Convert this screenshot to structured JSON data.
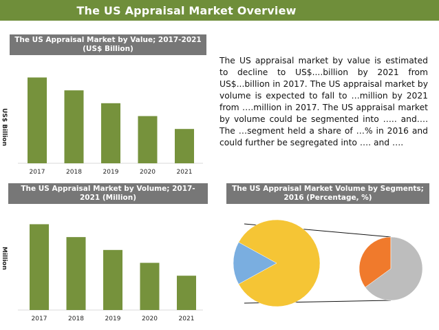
{
  "header": {
    "title": "The US Appraisal Market Overview"
  },
  "description": "The US appraisal market by value is estimated to decline to US$....billion by 2021 from US$...billion in 2017. The US appraisal market by volume is expected to fall to …million by 2021 from ….million in 2017. The US appraisal market by volume could be segmented into ….. and…. The …segment held a share of …% in 2016 and could further be segregated into …. and ….",
  "colors": {
    "title_bar": "#6f8e3a",
    "bar_fill": "#76923c",
    "chart_title_bg": "#777777",
    "pie_main": "#f5c535",
    "pie_slice": "#7aaee0",
    "pie_detail_orange": "#f07a2c",
    "pie_detail_gray": "#bdbdbd"
  },
  "chart_data": [
    {
      "type": "bar",
      "title": "The US Appraisal Market by Value; 2017-2021 (US$ Billion)",
      "ylabel": "US$ Billion",
      "categories": [
        "2017",
        "2018",
        "2019",
        "2020",
        "2021"
      ],
      "values": [
        100,
        85,
        70,
        55,
        40
      ],
      "ylim": [
        0,
        110
      ],
      "grid": false
    },
    {
      "type": "bar",
      "title": "The US Appraisal Market by Volume; 2017-2021 (Million)",
      "ylabel": "Million",
      "categories": [
        "2017",
        "2018",
        "2019",
        "2020",
        "2021"
      ],
      "values": [
        100,
        85,
        70,
        55,
        40
      ],
      "ylim": [
        0,
        110
      ],
      "grid": false
    },
    {
      "type": "pie",
      "title": "The US Appraisal Market Volume by Segments; 2016 (Percentage, %)",
      "slices": [
        {
          "value": 84
        },
        {
          "value": 16
        }
      ],
      "detail_slices": [
        {
          "value": 35
        },
        {
          "value": 65
        }
      ]
    }
  ]
}
